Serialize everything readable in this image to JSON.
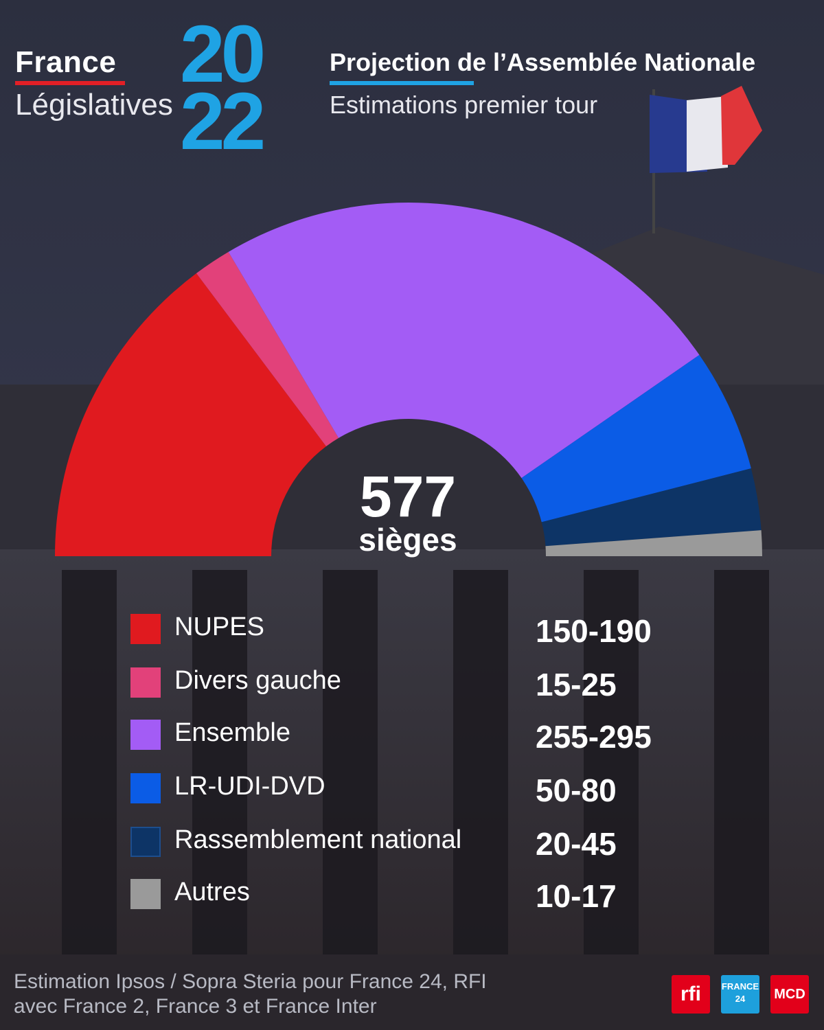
{
  "header": {
    "country": "France",
    "event": "Législatives",
    "year_top": "20",
    "year_bottom": "22",
    "title": "Projection de l’Assemblée Nationale",
    "subtitle": "Estimations premier tour"
  },
  "chart_data": {
    "type": "pie",
    "shape": "semicircle",
    "total": 577,
    "center_value": "577",
    "center_label": "sièges",
    "series": [
      {
        "name": "NUPES",
        "range": "150-190",
        "min": 150,
        "max": 190,
        "color": "#e01a1f"
      },
      {
        "name": "Divers gauche",
        "range": "15-25",
        "min": 15,
        "max": 25,
        "color": "#e2417a"
      },
      {
        "name": "Ensemble",
        "range": "255-295",
        "min": 255,
        "max": 295,
        "color": "#a35cf5"
      },
      {
        "name": "LR-UDI-DVD",
        "range": "50-80",
        "min": 50,
        "max": 80,
        "color": "#0b5ce6"
      },
      {
        "name": "Rassemblement national",
        "range": "20-45",
        "min": 20,
        "max": 45,
        "color": "#0d3466"
      },
      {
        "name": "Autres",
        "range": "10-17",
        "min": 10,
        "max": 17,
        "color": "#9a9a9a"
      }
    ]
  },
  "footer": {
    "source_line1": "Estimation Ipsos / Sopra Steria pour France 24, RFI",
    "source_line2": "avec France 2, France 3 et France Inter",
    "logos": [
      {
        "icon": "rfi-logo",
        "text": "rfi",
        "color": "#e2001a"
      },
      {
        "icon": "france24-logo",
        "text": "FRANCE 24",
        "color": "#1ea0dc"
      },
      {
        "icon": "mcd-logo",
        "text": "MCD",
        "color": "#e2001a"
      }
    ]
  }
}
